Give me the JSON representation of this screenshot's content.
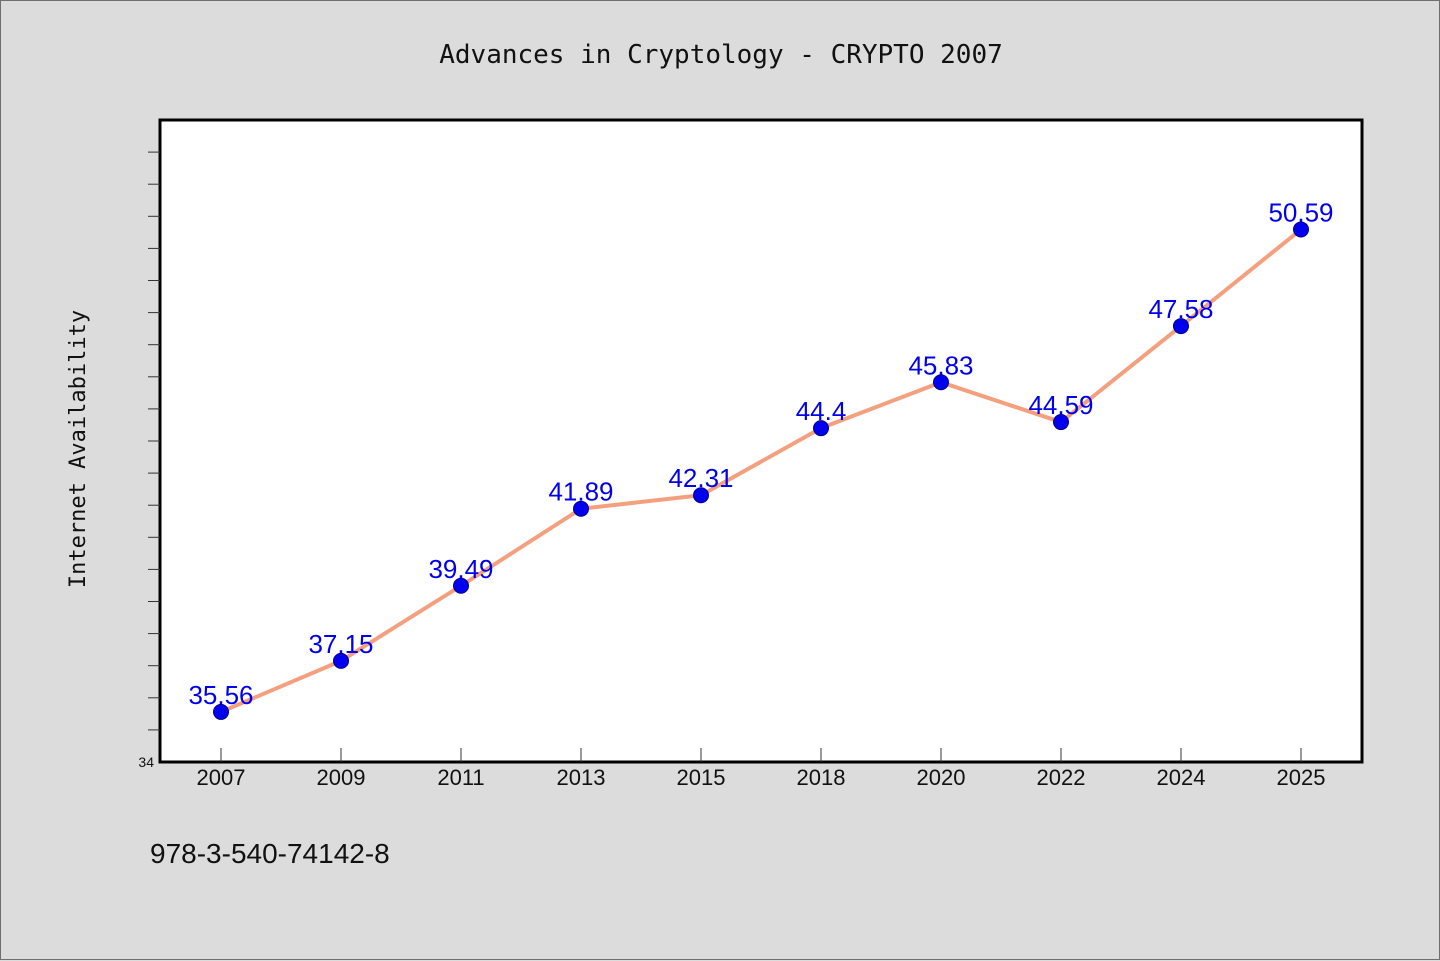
{
  "chart_data": {
    "type": "line",
    "title": "Advances in Cryptology - CRYPTO 2007",
    "xlabel": "",
    "ylabel": "Internet Availability",
    "categories": [
      "2007",
      "2009",
      "2011",
      "2013",
      "2015",
      "2018",
      "2020",
      "2022",
      "2024",
      "2025"
    ],
    "series": [
      {
        "values": [
          35.56,
          37.15,
          39.49,
          41.89,
          42.31,
          44.4,
          45.83,
          44.59,
          47.58,
          50.59
        ],
        "labels": [
          "35.56",
          "37.15",
          "39.49",
          "41.89",
          "42.31",
          "44.4",
          "45.83",
          "44.59",
          "47.58",
          "50.59"
        ]
      }
    ],
    "ylim": [
      34,
      54
    ],
    "y_tick_labels": [
      "34"
    ],
    "grid": false,
    "colors": {
      "line": "#f4a07f",
      "marker": "#0000ee",
      "marker_edge": "#00008b",
      "data_label": "#0000ee",
      "plot_bg": "#ffffff",
      "page_bg": "#dcdcdc"
    }
  },
  "footer": {
    "isbn": "978-3-540-74142-8"
  }
}
